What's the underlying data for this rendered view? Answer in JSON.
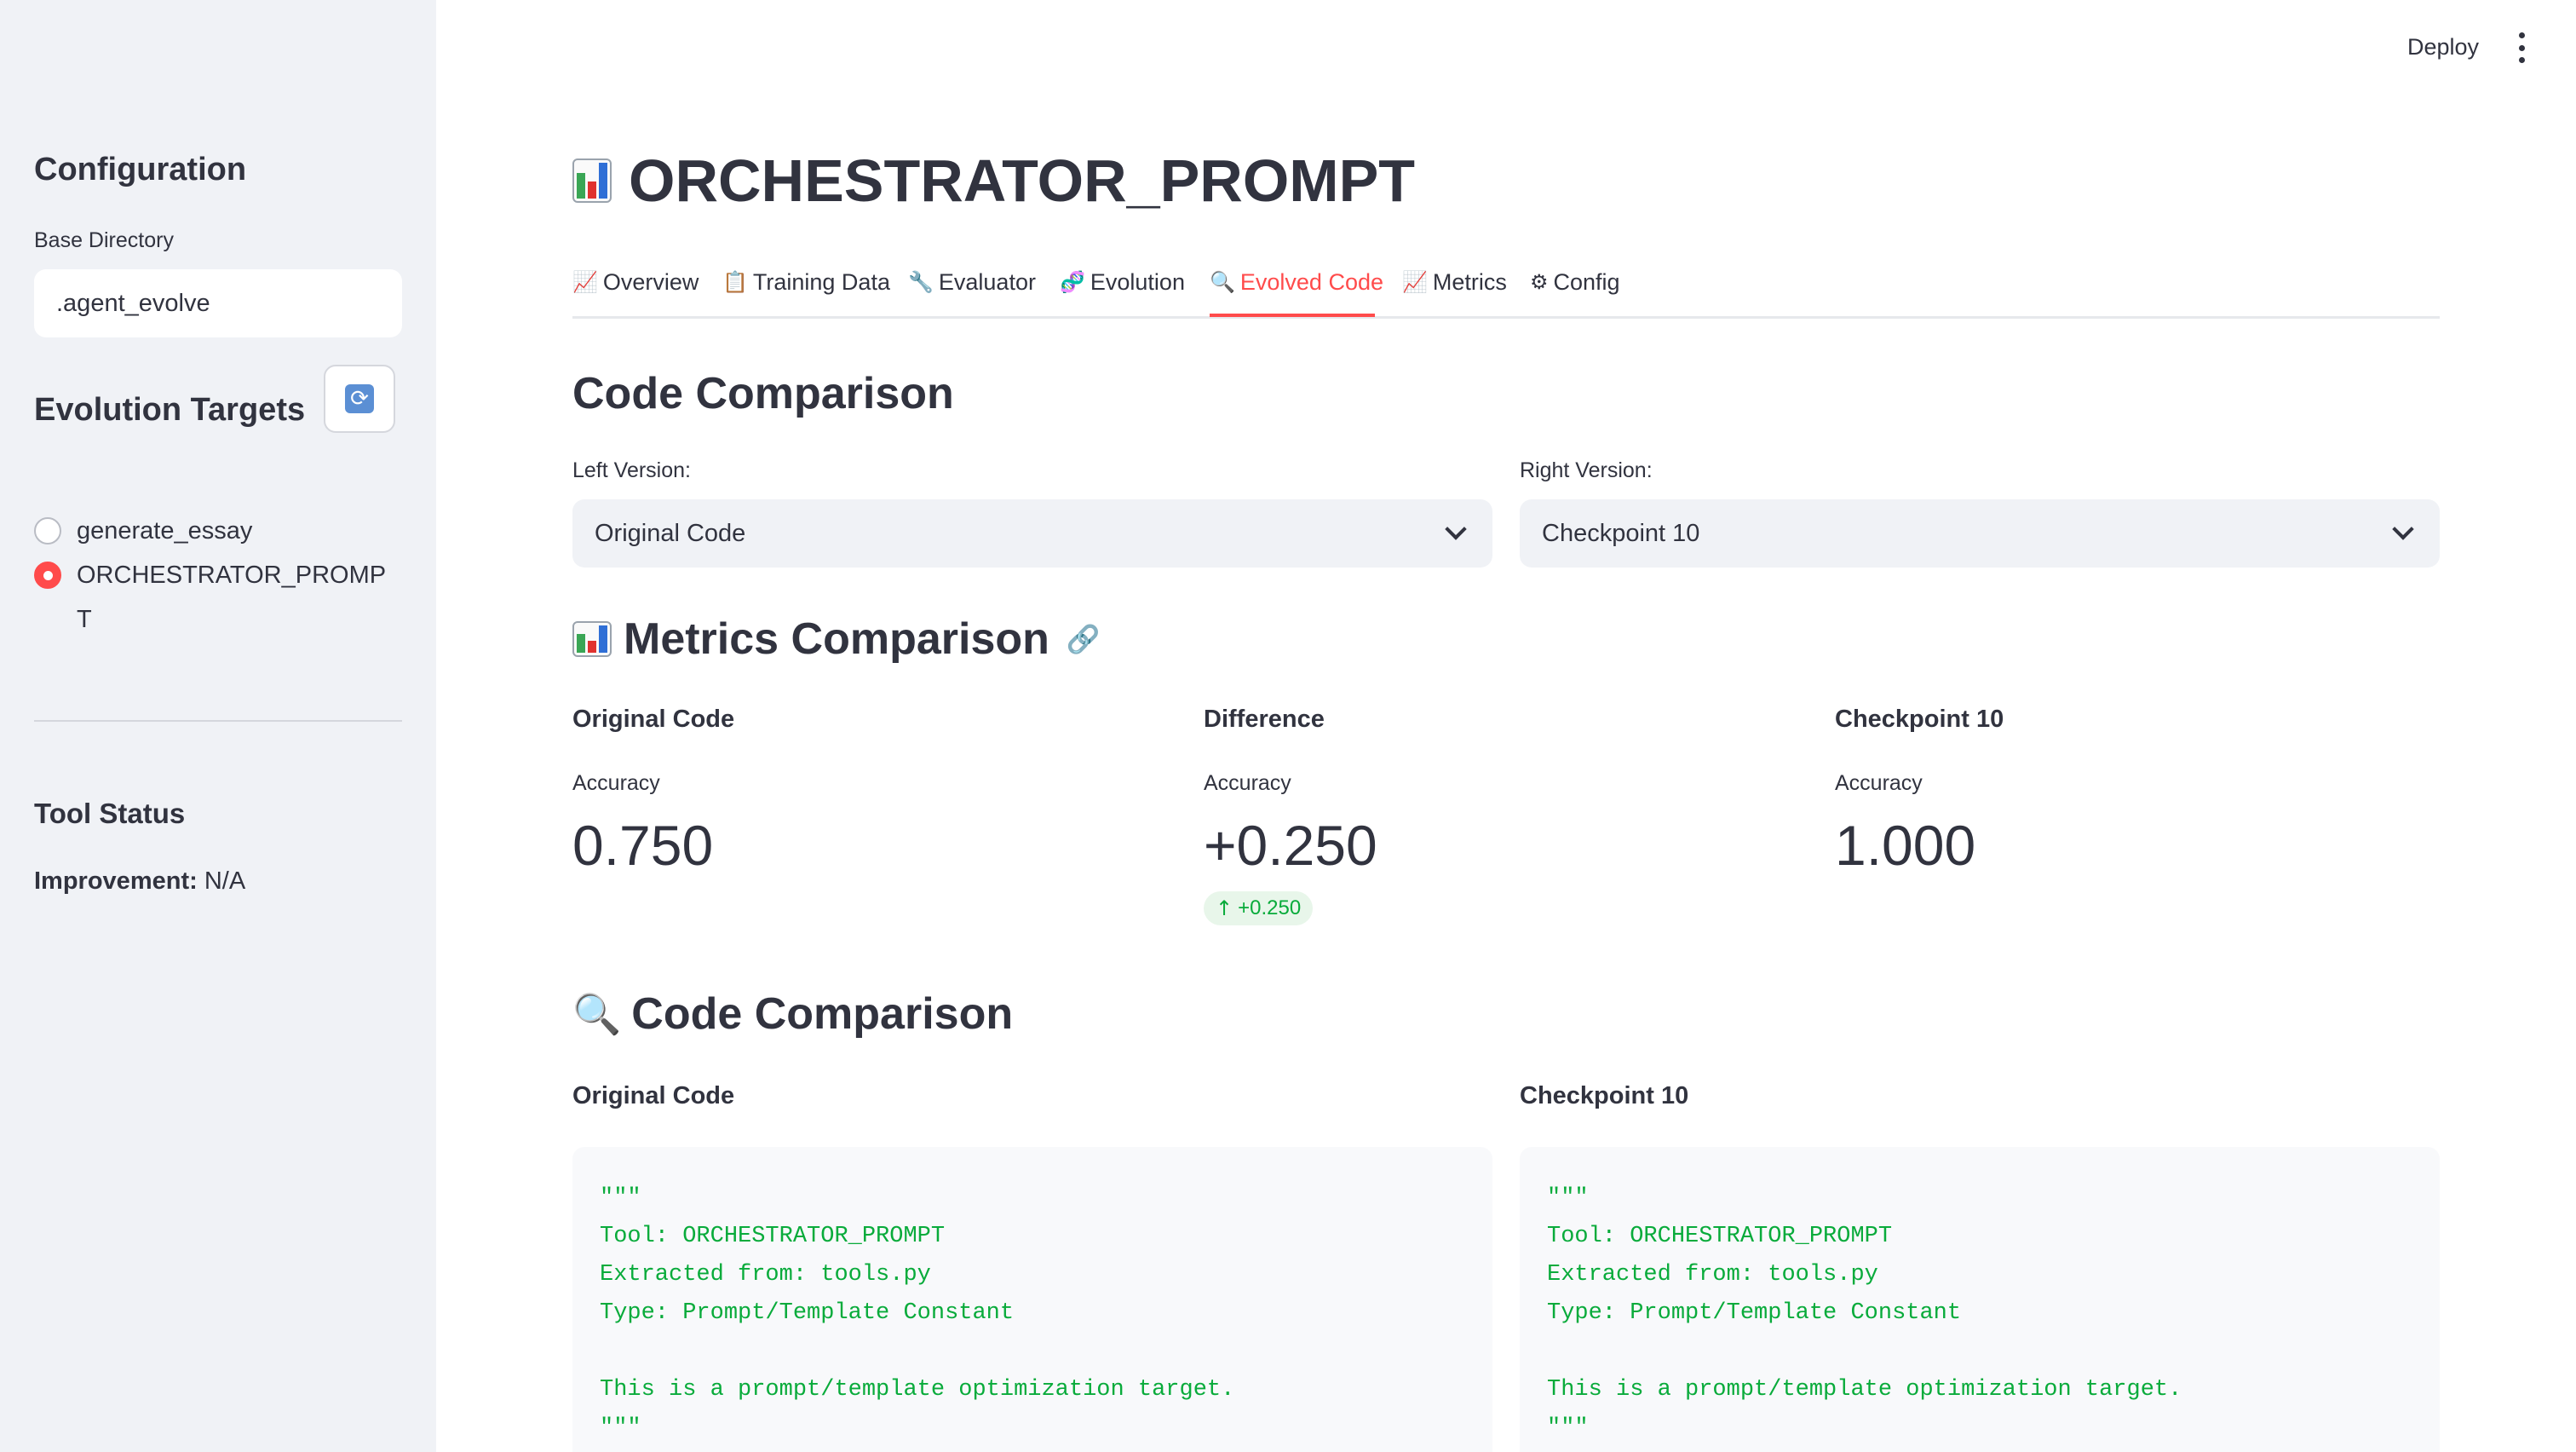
{
  "sidebar": {
    "title": "Configuration",
    "base_dir_label": "Base Directory",
    "base_dir_value": ".agent_evolve",
    "targets_title": "Evolution Targets",
    "targets": [
      {
        "label": "generate_essay",
        "selected": false
      },
      {
        "label_line1": "ORCHESTRATOR_PROMP",
        "label_line2": "T",
        "selected": true
      }
    ],
    "tool_status_title": "Tool Status",
    "improvement_label": "Improvement:",
    "improvement_value": "N/A"
  },
  "header": {
    "deploy_label": "Deploy",
    "menu_icon": "kebab-menu-icon"
  },
  "page": {
    "title": "ORCHESTRATOR_PROMPT",
    "title_icon": "bar-chart-icon"
  },
  "tabs": [
    {
      "label": "Overview",
      "icon": "📈"
    },
    {
      "label": "Training Data",
      "icon": "📋"
    },
    {
      "label": "Evaluator",
      "icon": "🔧"
    },
    {
      "label": "Evolution",
      "icon": "🧬"
    },
    {
      "label": "Evolved Code",
      "icon": "🔍",
      "active": true
    },
    {
      "label": "Metrics",
      "icon": "📈"
    },
    {
      "label": "Config",
      "icon": "⚙"
    }
  ],
  "code_comparison": {
    "title": "Code Comparison",
    "left_label": "Left Version:",
    "left_value": "Original Code",
    "right_label": "Right Version:",
    "right_value": "Checkpoint 10"
  },
  "metrics_comparison": {
    "title": "Metrics Comparison",
    "columns": [
      {
        "header": "Original Code",
        "metric_label": "Accuracy",
        "value": "0.750"
      },
      {
        "header": "Difference",
        "metric_label": "Accuracy",
        "value": "+0.250",
        "delta": "+0.250"
      },
      {
        "header": "Checkpoint 10",
        "metric_label": "Accuracy",
        "value": "1.000"
      }
    ]
  },
  "code_view": {
    "title": "Code Comparison",
    "left_header": "Original Code",
    "right_header": "Checkpoint 10",
    "left_lines": [
      "\"\"\"",
      "Tool: ORCHESTRATOR_PROMPT",
      "Extracted from: tools.py",
      "Type: Prompt/Template Constant",
      "",
      "This is a prompt/template optimization target.",
      "\"\"\""
    ],
    "right_lines": [
      "\"\"\"",
      "Tool: ORCHESTRATOR_PROMPT",
      "Extracted from: tools.py",
      "Type: Prompt/Template Constant",
      "",
      "This is a prompt/template optimization target.",
      "\"\"\""
    ]
  },
  "colors": {
    "accent": "#ff4b4b",
    "positive": "#09ab3b",
    "sidebar_bg": "#f0f2f6"
  }
}
